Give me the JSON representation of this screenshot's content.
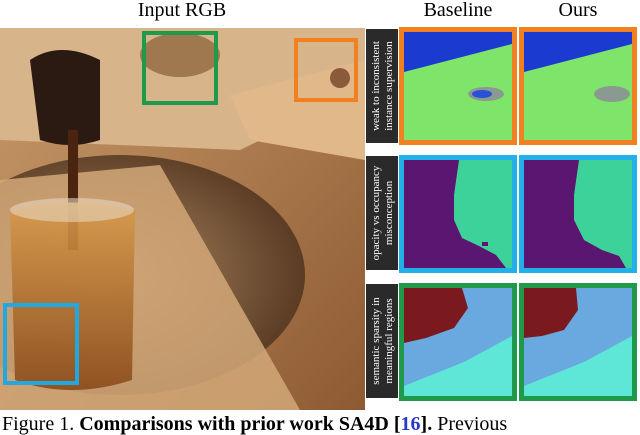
{
  "figure": {
    "column_titles": [
      "Input RGB",
      "Baseline",
      "Ours"
    ],
    "row_labels": [
      [
        "weak to inconsistent",
        "instance supervision"
      ],
      [
        "opacity vs occupancy",
        "misconception"
      ],
      [
        "semantic sparsity in",
        "meaningful regions"
      ]
    ]
  },
  "caption": {
    "label": "Figure 1.",
    "bold": "Comparisons with prior work SA4D [",
    "citation": "16",
    "bold_end": "].",
    "rest": "Previous"
  }
}
